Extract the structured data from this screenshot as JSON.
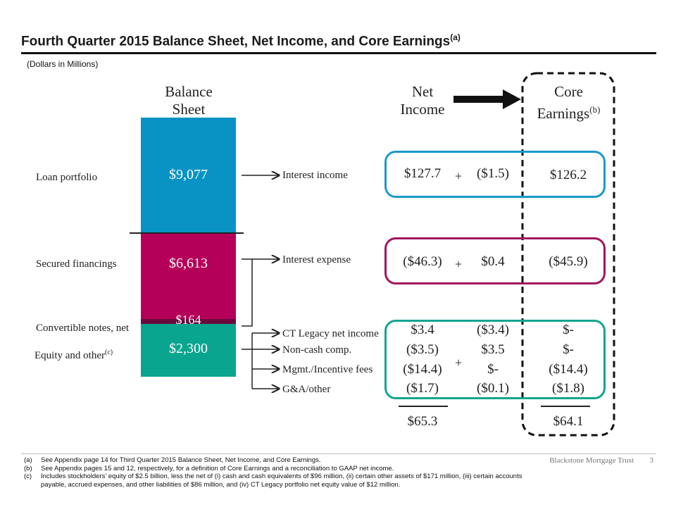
{
  "title": "Fourth Quarter 2015 Balance Sheet, Net Income, and Core Earnings",
  "title_sup": "(a)",
  "units": "(Dollars in Millions)",
  "headers": {
    "balance_sheet": [
      "Balance",
      "Sheet"
    ],
    "net_income": [
      "Net",
      "Income"
    ],
    "core_earnings": [
      "Core",
      "Earnings"
    ],
    "core_sup": "(b)"
  },
  "balance_sheet": {
    "rows": [
      {
        "label": "Loan portfolio",
        "value": "$9,077",
        "color": "#0893c4"
      },
      {
        "label": "Secured financings",
        "value": "$6,613",
        "color": "#b5005a"
      },
      {
        "label": "Convertible notes, net",
        "value": "$164",
        "color": "#6b0a3c"
      },
      {
        "label": "Equity and other",
        "label_sup": "(c)",
        "value": "$2,300",
        "color": "#0aa58e"
      }
    ]
  },
  "arrow_labels": {
    "interest_income": "Interest income",
    "interest_expense": "Interest expense",
    "ct_legacy": "CT Legacy net income",
    "non_cash": "Non-cash comp.",
    "mgmt": "Mgmt./Incentive fees",
    "ga": "G&A/other"
  },
  "income_rows": {
    "interest_income": {
      "net": "$127.7",
      "adj": "($1.5)",
      "core": "$126.2"
    },
    "interest_expense": {
      "net": "($46.3)",
      "adj": "$0.4",
      "core": "($45.9)"
    },
    "ct_legacy": {
      "net": "$3.4",
      "adj": "($3.4)",
      "core": "$-"
    },
    "non_cash": {
      "net": "($3.5)",
      "adj": "$3.5",
      "core": "$-"
    },
    "mgmt": {
      "net": "($14.4)",
      "adj": "$-",
      "core": "($14.4)"
    },
    "ga": {
      "net": "($1.7)",
      "adj": "($0.1)",
      "core": "($1.8)"
    }
  },
  "plus_sign": "+",
  "totals": {
    "net": "$65.3",
    "core": "$64.1"
  },
  "box_colors": {
    "blue": "#1a9ac9",
    "magenta": "#a0155c",
    "teal": "#12a58f"
  },
  "footnotes": [
    {
      "key": "(a)",
      "text": "See Appendix page 14 for Third Quarter 2015 Balance Sheet, Net Income, and Core Earnings."
    },
    {
      "key": "(b)",
      "text": "See Appendix pages 15 and 12, respectively, for a definition of Core Earnings and a reconciliation to GAAP net income."
    },
    {
      "key": "(c)",
      "text": "Includes stockholders’ equity of $2.5 billion, less the net of (i) cash and cash equivalents of $96 million, (ii) certain other assets of $171 million, (iii) certain accounts"
    },
    {
      "key": "",
      "text": "payable, accrued expenses, and other liabilities of $86 million, and (iv) CT Legacy portfolio net equity value of $12 million."
    }
  ],
  "brand": "Blackstone Mortgage Trust",
  "page_number": "3"
}
